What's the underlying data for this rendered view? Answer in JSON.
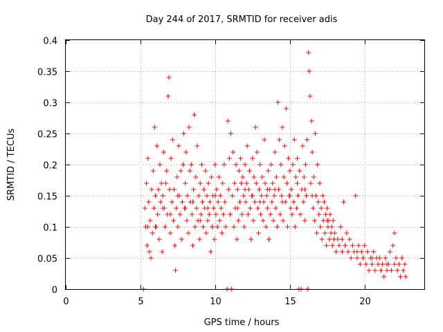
{
  "chart_data": {
    "type": "scatter",
    "title": "Day 244 of 2017, SRMTID for receiver adis",
    "xlabel": "GPS time / hours",
    "ylabel": "SRMTID / TECUs",
    "xlim": [
      0,
      24
    ],
    "ylim": [
      0,
      0.4
    ],
    "x_ticks": [
      0,
      5,
      10,
      15,
      20
    ],
    "x_tick_labels": [
      "0",
      "5",
      "10",
      "15",
      "20"
    ],
    "y_ticks": [
      0,
      0.05,
      0.1,
      0.15,
      0.2,
      0.25,
      0.3,
      0.35,
      0.4
    ],
    "y_tick_labels": [
      "0",
      "0.05",
      "0.1",
      "0.15",
      "0.2",
      "0.25",
      "0.3",
      "0.35",
      "0.4"
    ],
    "grid": true,
    "legend": "none",
    "marker": "plus",
    "color": "#ff0000",
    "points": [
      [
        5.2,
        0.0
      ],
      [
        5.3,
        0.13
      ],
      [
        5.35,
        0.1
      ],
      [
        5.4,
        0.17
      ],
      [
        5.45,
        0.07
      ],
      [
        5.5,
        0.21
      ],
      [
        5.55,
        0.14
      ],
      [
        5.6,
        0.06
      ],
      [
        5.65,
        0.11
      ],
      [
        5.7,
        0.05
      ],
      [
        5.75,
        0.16
      ],
      [
        5.8,
        0.09
      ],
      [
        5.85,
        0.19
      ],
      [
        5.9,
        0.13
      ],
      [
        5.95,
        0.26
      ],
      [
        6.0,
        0.15
      ],
      [
        6.05,
        0.1
      ],
      [
        6.1,
        0.23
      ],
      [
        6.15,
        0.12
      ],
      [
        6.2,
        0.16
      ],
      [
        6.25,
        0.08
      ],
      [
        6.3,
        0.2
      ],
      [
        6.35,
        0.14
      ],
      [
        6.4,
        0.17
      ],
      [
        6.45,
        0.06
      ],
      [
        6.5,
        0.15
      ],
      [
        6.55,
        0.22
      ],
      [
        6.6,
        0.13
      ],
      [
        6.65,
        0.1
      ],
      [
        6.7,
        0.17
      ],
      [
        6.75,
        0.19
      ],
      [
        6.8,
        0.12
      ],
      [
        6.85,
        0.31
      ],
      [
        6.9,
        0.34
      ],
      [
        6.95,
        0.16
      ],
      [
        7.0,
        0.09
      ],
      [
        7.05,
        0.21
      ],
      [
        7.1,
        0.14
      ],
      [
        7.15,
        0.24
      ],
      [
        7.2,
        0.11
      ],
      [
        7.25,
        0.16
      ],
      [
        7.3,
        0.07
      ],
      [
        7.35,
        0.03
      ],
      [
        7.4,
        0.13
      ],
      [
        7.45,
        0.18
      ],
      [
        7.5,
        0.1
      ],
      [
        7.55,
        0.23
      ],
      [
        7.6,
        0.15
      ],
      [
        7.65,
        0.12
      ],
      [
        7.7,
        0.19
      ],
      [
        7.75,
        0.08
      ],
      [
        7.8,
        0.14
      ],
      [
        7.85,
        0.2
      ],
      [
        7.9,
        0.25
      ],
      [
        7.95,
        0.13
      ],
      [
        8.0,
        0.17
      ],
      [
        8.05,
        0.22
      ],
      [
        8.1,
        0.11
      ],
      [
        8.15,
        0.15
      ],
      [
        8.2,
        0.09
      ],
      [
        8.25,
        0.26
      ],
      [
        8.3,
        0.19
      ],
      [
        8.35,
        0.14
      ],
      [
        8.4,
        0.2
      ],
      [
        8.45,
        0.12
      ],
      [
        8.5,
        0.07
      ],
      [
        8.55,
        0.16
      ],
      [
        8.6,
        0.28
      ],
      [
        8.65,
        0.1
      ],
      [
        8.7,
        0.18
      ],
      [
        8.75,
        0.13
      ],
      [
        8.8,
        0.23
      ],
      [
        8.85,
        0.11
      ],
      [
        8.9,
        0.15
      ],
      [
        8.95,
        0.08
      ],
      [
        9.0,
        0.17
      ],
      [
        9.05,
        0.12
      ],
      [
        9.1,
        0.2
      ],
      [
        9.15,
        0.14
      ],
      [
        9.2,
        0.1
      ],
      [
        9.25,
        0.16
      ],
      [
        9.3,
        0.13
      ],
      [
        9.35,
        0.19
      ],
      [
        9.4,
        0.09
      ],
      [
        9.45,
        0.15
      ],
      [
        9.5,
        0.11
      ],
      [
        9.55,
        0.17
      ],
      [
        9.6,
        0.12
      ],
      [
        9.65,
        0.14
      ],
      [
        9.7,
        0.06
      ],
      [
        9.75,
        0.18
      ],
      [
        9.8,
        0.1
      ],
      [
        9.85,
        0.15
      ],
      [
        9.9,
        0.13
      ],
      [
        9.95,
        0.08
      ],
      [
        10.0,
        0.2
      ],
      [
        10.05,
        0.12
      ],
      [
        10.1,
        0.16
      ],
      [
        10.15,
        0.1
      ],
      [
        10.2,
        0.14
      ],
      [
        10.25,
        0.18
      ],
      [
        10.3,
        0.11
      ],
      [
        10.35,
        0.15
      ],
      [
        10.4,
        0.13
      ],
      [
        10.45,
        0.09
      ],
      [
        10.5,
        0.17
      ],
      [
        10.55,
        0.12
      ],
      [
        10.6,
        0.2
      ],
      [
        10.65,
        0.14
      ],
      [
        10.7,
        0.1
      ],
      [
        10.8,
        0.0
      ],
      [
        10.85,
        0.27
      ],
      [
        10.9,
        0.16
      ],
      [
        10.95,
        0.21
      ],
      [
        11.0,
        0.12
      ],
      [
        11.05,
        0.25
      ],
      [
        11.1,
        0.0
      ],
      [
        11.15,
        0.15
      ],
      [
        11.2,
        0.22
      ],
      [
        11.25,
        0.1
      ],
      [
        11.3,
        0.17
      ],
      [
        11.35,
        0.13
      ],
      [
        11.4,
        0.2
      ],
      [
        11.45,
        0.08
      ],
      [
        11.5,
        0.16
      ],
      [
        11.55,
        0.11
      ],
      [
        11.6,
        0.19
      ],
      [
        11.65,
        0.14
      ],
      [
        11.7,
        0.21
      ],
      [
        11.75,
        0.17
      ],
      [
        11.8,
        0.12
      ],
      [
        11.85,
        0.18
      ],
      [
        11.9,
        0.15
      ],
      [
        11.95,
        0.1
      ],
      [
        12.0,
        0.2
      ],
      [
        12.05,
        0.14
      ],
      [
        12.1,
        0.17
      ],
      [
        12.15,
        0.23
      ],
      [
        12.2,
        0.12
      ],
      [
        12.25,
        0.16
      ],
      [
        12.3,
        0.19
      ],
      [
        12.35,
        0.13
      ],
      [
        12.4,
        0.08
      ],
      [
        12.45,
        0.15
      ],
      [
        12.5,
        0.21
      ],
      [
        12.55,
        0.11
      ],
      [
        12.6,
        0.18
      ],
      [
        12.65,
        0.14
      ],
      [
        12.7,
        0.26
      ],
      [
        12.75,
        0.17
      ],
      [
        12.8,
        0.22
      ],
      [
        12.85,
        0.13
      ],
      [
        12.9,
        0.09
      ],
      [
        12.95,
        0.16
      ],
      [
        13.0,
        0.2
      ],
      [
        13.05,
        0.12
      ],
      [
        13.1,
        0.15
      ],
      [
        13.15,
        0.18
      ],
      [
        13.2,
        0.11
      ],
      [
        13.25,
        0.14
      ],
      [
        13.3,
        0.24
      ],
      [
        13.35,
        0.17
      ],
      [
        13.4,
        0.1
      ],
      [
        13.45,
        0.15
      ],
      [
        13.5,
        0.13
      ],
      [
        13.55,
        0.19
      ],
      [
        13.6,
        0.08
      ],
      [
        13.65,
        0.16
      ],
      [
        13.7,
        0.12
      ],
      [
        13.75,
        0.2
      ],
      [
        13.8,
        0.14
      ],
      [
        13.85,
        0.17
      ],
      [
        13.9,
        0.11
      ],
      [
        13.95,
        0.15
      ],
      [
        14.0,
        0.22
      ],
      [
        14.05,
        0.13
      ],
      [
        14.1,
        0.18
      ],
      [
        14.15,
        0.1
      ],
      [
        14.2,
        0.3
      ],
      [
        14.25,
        0.16
      ],
      [
        14.3,
        0.24
      ],
      [
        14.35,
        0.12
      ],
      [
        14.4,
        0.2
      ],
      [
        14.45,
        0.15
      ],
      [
        14.5,
        0.26
      ],
      [
        14.55,
        0.11
      ],
      [
        14.6,
        0.18
      ],
      [
        14.65,
        0.23
      ],
      [
        14.7,
        0.14
      ],
      [
        14.75,
        0.29
      ],
      [
        14.8,
        0.17
      ],
      [
        14.85,
        0.1
      ],
      [
        14.9,
        0.21
      ],
      [
        14.95,
        0.15
      ],
      [
        15.0,
        0.19
      ],
      [
        15.05,
        0.13
      ],
      [
        15.1,
        0.16
      ],
      [
        15.15,
        0.12
      ],
      [
        15.2,
        0.2
      ],
      [
        15.25,
        0.14
      ],
      [
        15.3,
        0.24
      ],
      [
        15.35,
        0.1
      ],
      [
        15.4,
        0.18
      ],
      [
        15.45,
        0.13
      ],
      [
        15.5,
        0.21
      ],
      [
        15.55,
        0.15
      ],
      [
        15.6,
        0.0
      ],
      [
        15.65,
        0.19
      ],
      [
        15.7,
        0.12
      ],
      [
        15.75,
        0.0
      ],
      [
        15.8,
        0.16
      ],
      [
        15.85,
        0.23
      ],
      [
        15.9,
        0.14
      ],
      [
        15.95,
        0.18
      ],
      [
        16.0,
        0.11
      ],
      [
        16.05,
        0.2
      ],
      [
        16.1,
        0.15
      ],
      [
        16.15,
        0.24
      ],
      [
        16.2,
        0.0
      ],
      [
        16.25,
        0.38
      ],
      [
        16.3,
        0.35
      ],
      [
        16.35,
        0.31
      ],
      [
        16.4,
        0.17
      ],
      [
        16.45,
        0.27
      ],
      [
        16.5,
        0.22
      ],
      [
        16.55,
        0.13
      ],
      [
        16.6,
        0.18
      ],
      [
        16.65,
        0.11
      ],
      [
        16.7,
        0.25
      ],
      [
        16.75,
        0.15
      ],
      [
        16.8,
        0.09
      ],
      [
        16.85,
        0.2
      ],
      [
        16.9,
        0.14
      ],
      [
        16.95,
        0.12
      ],
      [
        17.0,
        0.17
      ],
      [
        17.05,
        0.1
      ],
      [
        17.1,
        0.13
      ],
      [
        17.15,
        0.08
      ],
      [
        17.2,
        0.15
      ],
      [
        17.25,
        0.11
      ],
      [
        17.3,
        0.14
      ],
      [
        17.35,
        0.09
      ],
      [
        17.4,
        0.12
      ],
      [
        17.45,
        0.07
      ],
      [
        17.5,
        0.13
      ],
      [
        17.55,
        0.1
      ],
      [
        17.6,
        0.11
      ],
      [
        17.65,
        0.08
      ],
      [
        17.7,
        0.12
      ],
      [
        17.75,
        0.09
      ],
      [
        17.8,
        0.1
      ],
      [
        17.85,
        0.07
      ],
      [
        17.9,
        0.11
      ],
      [
        17.95,
        0.08
      ],
      [
        18.0,
        0.09
      ],
      [
        18.1,
        0.06
      ],
      [
        18.2,
        0.08
      ],
      [
        18.3,
        0.07
      ],
      [
        18.4,
        0.1
      ],
      [
        18.5,
        0.06
      ],
      [
        18.6,
        0.14
      ],
      [
        18.7,
        0.07
      ],
      [
        18.8,
        0.09
      ],
      [
        18.9,
        0.06
      ],
      [
        19.0,
        0.08
      ],
      [
        19.1,
        0.05
      ],
      [
        19.2,
        0.07
      ],
      [
        19.3,
        0.06
      ],
      [
        19.4,
        0.15
      ],
      [
        19.5,
        0.05
      ],
      [
        19.6,
        0.07
      ],
      [
        19.7,
        0.04
      ],
      [
        19.8,
        0.06
      ],
      [
        19.9,
        0.05
      ],
      [
        20.0,
        0.07
      ],
      [
        20.1,
        0.04
      ],
      [
        20.2,
        0.06
      ],
      [
        20.3,
        0.03
      ],
      [
        20.4,
        0.05
      ],
      [
        20.5,
        0.04
      ],
      [
        20.6,
        0.06
      ],
      [
        20.7,
        0.03
      ],
      [
        20.8,
        0.05
      ],
      [
        20.9,
        0.04
      ],
      [
        21.0,
        0.05
      ],
      [
        21.1,
        0.03
      ],
      [
        21.2,
        0.04
      ],
      [
        21.3,
        0.02
      ],
      [
        21.4,
        0.05
      ],
      [
        21.5,
        0.03
      ],
      [
        21.6,
        0.04
      ],
      [
        21.7,
        0.06
      ],
      [
        21.8,
        0.03
      ],
      [
        21.9,
        0.07
      ],
      [
        22.0,
        0.09
      ],
      [
        22.1,
        0.05
      ],
      [
        22.2,
        0.03
      ],
      [
        22.3,
        0.04
      ],
      [
        22.4,
        0.02
      ],
      [
        22.5,
        0.05
      ],
      [
        22.6,
        0.03
      ],
      [
        22.7,
        0.04
      ],
      [
        22.75,
        0.02
      ],
      [
        6.0,
        0.1
      ],
      [
        7.0,
        0.12
      ],
      [
        8.0,
        0.13
      ],
      [
        9.0,
        0.11
      ],
      [
        10.0,
        0.15
      ],
      [
        12.0,
        0.16
      ],
      [
        13.0,
        0.14
      ],
      [
        14.0,
        0.16
      ],
      [
        15.0,
        0.15
      ],
      [
        16.0,
        0.16
      ],
      [
        18.5,
        0.08
      ],
      [
        19.5,
        0.06
      ],
      [
        20.5,
        0.05
      ],
      [
        21.5,
        0.04
      ],
      [
        22.0,
        0.04
      ],
      [
        5.5,
        0.1
      ],
      [
        6.5,
        0.13
      ],
      [
        7.5,
        0.15
      ],
      [
        8.5,
        0.14
      ],
      [
        9.5,
        0.13
      ],
      [
        11.5,
        0.13
      ],
      [
        12.5,
        0.15
      ],
      [
        13.5,
        0.16
      ],
      [
        14.5,
        0.14
      ],
      [
        15.5,
        0.17
      ],
      [
        16.5,
        0.15
      ],
      [
        17.5,
        0.11
      ]
    ]
  }
}
